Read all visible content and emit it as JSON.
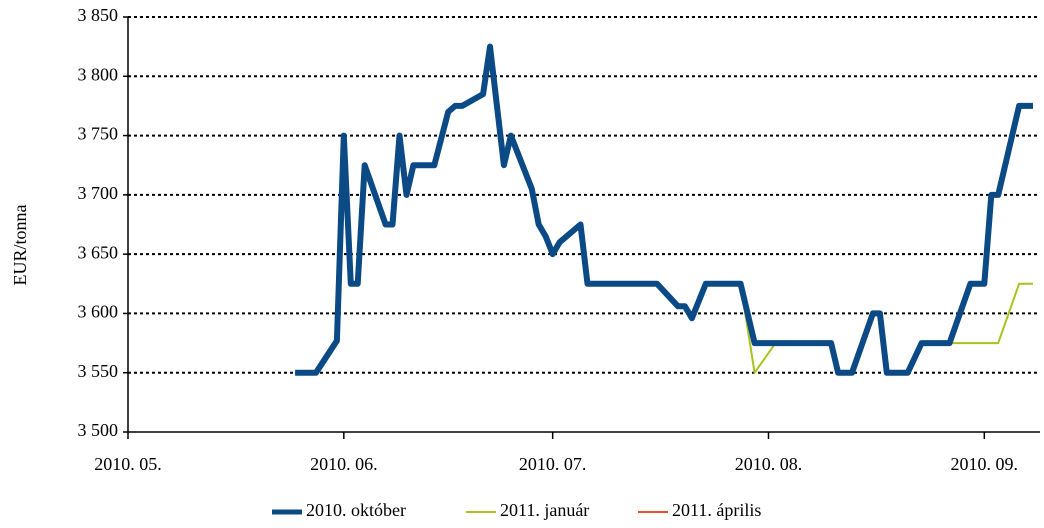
{
  "chart_data": {
    "type": "line",
    "ylabel": "EUR/tonna",
    "x": [
      24,
      27,
      30,
      31,
      32,
      33,
      34,
      37,
      38,
      39,
      40,
      41,
      44,
      46,
      47,
      48,
      51,
      52,
      54,
      55,
      58,
      59,
      60,
      61,
      62,
      65,
      66,
      76,
      79,
      80,
      81,
      83,
      88,
      90,
      93,
      101,
      102,
      104,
      107,
      108,
      109,
      112,
      114,
      118,
      121,
      123,
      124,
      125,
      128,
      130
    ],
    "series": [
      {
        "name": "2011. április",
        "color": "#e8502a",
        "width": 2,
        "values": [
          3550,
          3550,
          3577,
          3750,
          3625,
          3625,
          3725,
          3675,
          3675,
          3750,
          3700,
          3725,
          3725,
          3770,
          3775,
          3775,
          3785,
          3825,
          3725,
          3750,
          3705,
          3675,
          3665,
          3650,
          3660,
          3675,
          3625,
          3625,
          3606,
          3606,
          3596,
          3625,
          3625,
          3575,
          3575,
          3575,
          3550,
          3550,
          3600,
          3600,
          3550,
          3550,
          3575,
          3575,
          3625,
          3625,
          3700,
          3700,
          3775,
          3775
        ]
      },
      {
        "name": "2011. január",
        "color": "#a8c21e",
        "width": 2,
        "values": [
          3550,
          3550,
          3577,
          3750,
          3625,
          3625,
          3725,
          3675,
          3675,
          3750,
          3700,
          3725,
          3725,
          3770,
          3775,
          3775,
          3785,
          3825,
          3725,
          3750,
          3705,
          3675,
          3665,
          3650,
          3660,
          3675,
          3625,
          3625,
          3606,
          3606,
          3596,
          3625,
          3625,
          3550,
          3575,
          3575,
          3550,
          3550,
          3600,
          3600,
          3550,
          3550,
          3575,
          3575,
          3575,
          3575,
          3575,
          3575,
          3625,
          3625
        ]
      },
      {
        "name": "2010. október",
        "color": "#0b4a85",
        "width": 6,
        "values": [
          3550,
          3550,
          3577,
          3750,
          3625,
          3625,
          3725,
          3675,
          3675,
          3750,
          3700,
          3725,
          3725,
          3770,
          3775,
          3775,
          3785,
          3825,
          3725,
          3750,
          3705,
          3675,
          3665,
          3650,
          3660,
          3675,
          3625,
          3625,
          3606,
          3606,
          3596,
          3625,
          3625,
          3575,
          3575,
          3575,
          3550,
          3550,
          3600,
          3600,
          3550,
          3550,
          3575,
          3575,
          3625,
          3625,
          3700,
          3700,
          3775,
          3775
        ]
      }
    ],
    "legend_order": [
      2,
      1,
      0
    ],
    "xlim": [
      0,
      131
    ],
    "xticks": [
      {
        "value": 0,
        "label": "2010. 05."
      },
      {
        "value": 31,
        "label": "2010. 06."
      },
      {
        "value": 61,
        "label": "2010. 07."
      },
      {
        "value": 92,
        "label": "2010. 08."
      },
      {
        "value": 123,
        "label": "2010. 09."
      }
    ],
    "ylim": [
      3500,
      3850
    ],
    "yticks": [
      {
        "value": 3500,
        "label": "3 500"
      },
      {
        "value": 3550,
        "label": "3 550"
      },
      {
        "value": 3600,
        "label": "3 600"
      },
      {
        "value": 3650,
        "label": "3 650"
      },
      {
        "value": 3700,
        "label": "3 700"
      },
      {
        "value": 3750,
        "label": "3 750"
      },
      {
        "value": 3800,
        "label": "3 800"
      },
      {
        "value": 3850,
        "label": "3 850"
      }
    ],
    "grid": true,
    "legend": "bottom"
  }
}
